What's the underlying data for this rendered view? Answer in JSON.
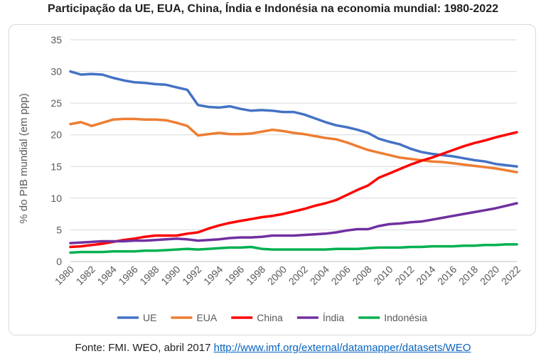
{
  "chart_data": {
    "type": "line",
    "title": "Participação da UE, EUA, China, Índia e Indonésia na economia mundial: 1980-2022",
    "ylabel": "% do PIB mundial (em ppp)",
    "xlabel": "",
    "ylim": [
      0,
      35
    ],
    "yticks": [
      0,
      5,
      10,
      15,
      20,
      25,
      30,
      35
    ],
    "x": [
      1980,
      1981,
      1982,
      1983,
      1984,
      1985,
      1986,
      1987,
      1988,
      1989,
      1990,
      1991,
      1992,
      1993,
      1994,
      1995,
      1996,
      1997,
      1998,
      1999,
      2000,
      2001,
      2002,
      2003,
      2004,
      2005,
      2006,
      2007,
      2008,
      2009,
      2010,
      2011,
      2012,
      2013,
      2014,
      2015,
      2016,
      2017,
      2018,
      2019,
      2020,
      2021,
      2022
    ],
    "xticks": [
      "1980",
      "1982",
      "1984",
      "1986",
      "1988",
      "1990",
      "1992",
      "1994",
      "1996",
      "1998",
      "2000",
      "2002",
      "2004",
      "2006",
      "2008",
      "2010",
      "2012",
      "2014",
      "2016",
      "2018",
      "2020",
      "2022"
    ],
    "grid": true,
    "legend_position": "bottom",
    "series": [
      {
        "name": "UE",
        "color": "#4472c4",
        "values": [
          30.0,
          29.5,
          29.6,
          29.5,
          29.0,
          28.6,
          28.3,
          28.2,
          28.0,
          27.9,
          27.5,
          27.1,
          24.7,
          24.4,
          24.3,
          24.5,
          24.1,
          23.8,
          23.9,
          23.8,
          23.6,
          23.6,
          23.2,
          22.6,
          22.0,
          21.5,
          21.2,
          20.8,
          20.3,
          19.4,
          18.9,
          18.5,
          17.8,
          17.3,
          17.0,
          16.8,
          16.6,
          16.3,
          16.0,
          15.8,
          15.4,
          15.2,
          15.0
        ]
      },
      {
        "name": "EUA",
        "color": "#ed7d31",
        "values": [
          21.7,
          22.0,
          21.4,
          21.9,
          22.4,
          22.5,
          22.5,
          22.4,
          22.4,
          22.3,
          21.9,
          21.4,
          19.9,
          20.1,
          20.3,
          20.1,
          20.1,
          20.2,
          20.5,
          20.8,
          20.6,
          20.3,
          20.1,
          19.8,
          19.5,
          19.3,
          18.8,
          18.2,
          17.6,
          17.2,
          16.8,
          16.4,
          16.2,
          16.0,
          15.8,
          15.7,
          15.5,
          15.3,
          15.1,
          14.9,
          14.7,
          14.4,
          14.1
        ]
      },
      {
        "name": "China",
        "color": "#ff0000",
        "values": [
          2.3,
          2.4,
          2.6,
          2.8,
          3.1,
          3.4,
          3.6,
          3.9,
          4.1,
          4.1,
          4.1,
          4.4,
          4.6,
          5.2,
          5.7,
          6.1,
          6.4,
          6.7,
          7.0,
          7.2,
          7.5,
          7.9,
          8.3,
          8.8,
          9.2,
          9.7,
          10.5,
          11.3,
          12.0,
          13.2,
          13.9,
          14.6,
          15.3,
          15.9,
          16.4,
          17.0,
          17.6,
          18.2,
          18.7,
          19.1,
          19.6,
          20.0,
          20.4
        ]
      },
      {
        "name": "Índia",
        "color": "#7030a0",
        "values": [
          2.9,
          3.0,
          3.1,
          3.2,
          3.2,
          3.2,
          3.3,
          3.3,
          3.4,
          3.5,
          3.6,
          3.5,
          3.3,
          3.4,
          3.5,
          3.7,
          3.8,
          3.8,
          3.9,
          4.1,
          4.1,
          4.1,
          4.2,
          4.3,
          4.4,
          4.6,
          4.9,
          5.1,
          5.1,
          5.6,
          5.9,
          6.0,
          6.2,
          6.3,
          6.6,
          6.9,
          7.2,
          7.5,
          7.8,
          8.1,
          8.4,
          8.8,
          9.2
        ]
      },
      {
        "name": "Indonésia",
        "color": "#00b050",
        "values": [
          1.4,
          1.5,
          1.5,
          1.5,
          1.6,
          1.6,
          1.6,
          1.7,
          1.7,
          1.8,
          1.9,
          2.0,
          1.9,
          2.0,
          2.1,
          2.2,
          2.2,
          2.3,
          2.0,
          1.9,
          1.9,
          1.9,
          1.9,
          1.9,
          1.9,
          2.0,
          2.0,
          2.0,
          2.1,
          2.2,
          2.2,
          2.2,
          2.3,
          2.3,
          2.4,
          2.4,
          2.4,
          2.5,
          2.5,
          2.6,
          2.6,
          2.7,
          2.7
        ]
      }
    ]
  },
  "source": {
    "prefix": "Fonte: FMI. WEO, abril 2017 ",
    "link_text": "http://www.imf.org/external/datamapper/datasets/WEO"
  }
}
